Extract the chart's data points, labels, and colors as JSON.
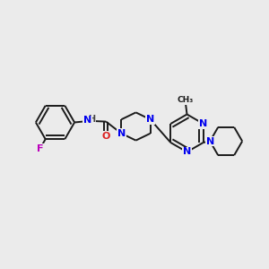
{
  "background_color": "#ebebeb",
  "bond_color": "#1a1a1a",
  "bond_width": 1.4,
  "atom_colors": {
    "N": "#0000ee",
    "O": "#dd2222",
    "F": "#bb00bb",
    "H": "#444444",
    "C": "#1a1a1a"
  },
  "font_size": 8.0,
  "small_font": 7.0
}
